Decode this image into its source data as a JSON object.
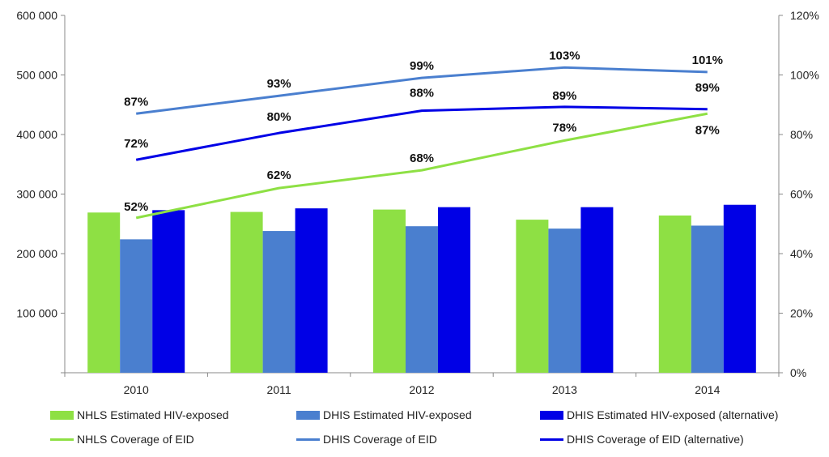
{
  "chart_data": {
    "type": "bar",
    "categories": [
      "2010",
      "2011",
      "2012",
      "2013",
      "2014"
    ],
    "y_left": {
      "ylim": [
        0,
        600000
      ],
      "ticks": [
        100000,
        200000,
        300000,
        400000,
        500000,
        600000
      ],
      "tick_labels": [
        "100 000",
        "200 000",
        "300 000",
        "400 000",
        "500 000",
        "600 000"
      ]
    },
    "y_right": {
      "ylim": [
        0,
        1.2
      ],
      "ticks": [
        0,
        0.2,
        0.4,
        0.6,
        0.8,
        1.0,
        1.2
      ],
      "tick_labels": [
        "0%",
        "20%",
        "40%",
        "60%",
        "80%",
        "100%",
        "120%"
      ]
    },
    "bar_series": [
      {
        "name": "NHLS Estimated HIV-exposed",
        "color": "#8ee044",
        "values": [
          269000,
          270000,
          274000,
          257000,
          264000
        ]
      },
      {
        "name": "DHIS Estimated HIV-exposed",
        "color": "#4a7fcf",
        "values": [
          224000,
          238000,
          246000,
          242000,
          247000
        ]
      },
      {
        "name": "DHIS Estimated HIV-exposed (alternative)",
        "color": "#0000e6",
        "values": [
          273000,
          276000,
          278000,
          278000,
          282000
        ]
      }
    ],
    "line_series": [
      {
        "name": "NHLS Coverage of EID",
        "color": "#8ee044",
        "values": [
          0.52,
          0.62,
          0.68,
          0.78,
          0.87
        ],
        "labels": [
          "52%",
          "62%",
          "68%",
          "78%",
          "87%"
        ]
      },
      {
        "name": "DHIS Coverage of EID",
        "color": "#4a7fcf",
        "values": [
          0.87,
          0.93,
          0.99,
          1.025,
          1.01
        ],
        "labels": [
          "87%",
          "93%",
          "99%",
          "103%",
          "101%"
        ]
      },
      {
        "name": "DHIS Coverage of EID (alternative)",
        "color": "#0000e6",
        "values": [
          0.715,
          0.805,
          0.88,
          0.893,
          0.885
        ],
        "labels": [
          "72%",
          "80%",
          "88%",
          "89%",
          "89%"
        ]
      }
    ]
  }
}
